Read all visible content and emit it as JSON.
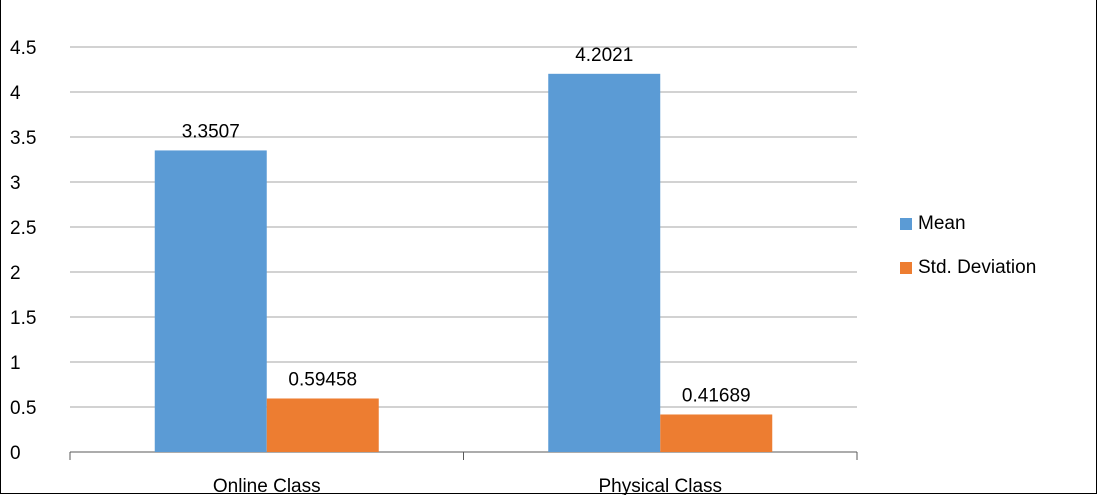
{
  "chart_data": {
    "type": "bar",
    "title": "",
    "categories": [
      "Online Class",
      "Physical Class"
    ],
    "series": [
      {
        "name": "Mean",
        "values": [
          3.3507,
          4.2021
        ],
        "color": "#5B9BD5",
        "labels": [
          "3.3507",
          "4.2021"
        ]
      },
      {
        "name": "Std. Deviation",
        "values": [
          0.59458,
          0.41689
        ],
        "color": "#ED7D31",
        "labels": [
          "0.59458",
          "0.41689"
        ]
      }
    ],
    "yticks": [
      "0",
      "0.5",
      "1",
      "1.5",
      "2",
      "2.5",
      "3",
      "3.5",
      "4",
      "4.5"
    ],
    "ylim": [
      0,
      4.5
    ],
    "xlabel": "",
    "ylabel": "",
    "grid": true,
    "legend_position": "right"
  }
}
